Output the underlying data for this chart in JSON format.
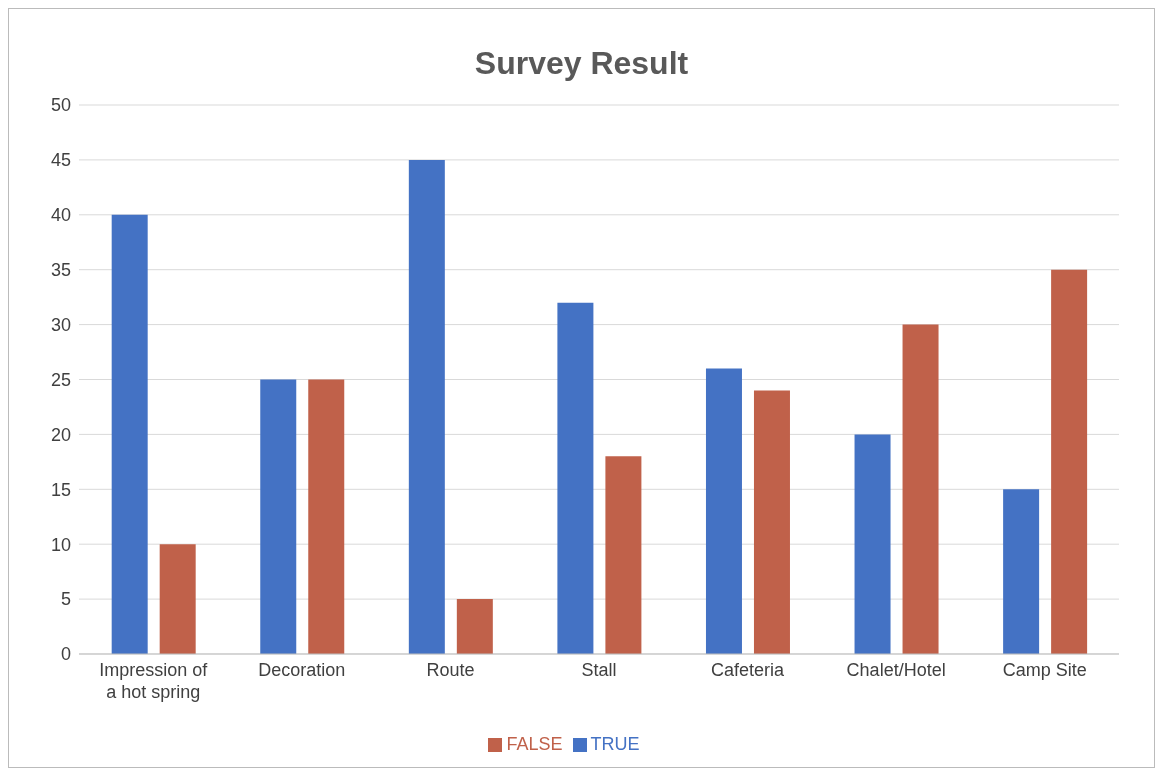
{
  "chart_data": {
    "type": "bar",
    "title": "Survey Result",
    "categories": [
      "Impression of a hot spring",
      "Decoration",
      "Route",
      "Stall",
      "Cafeteria",
      "Chalet/Hotel",
      "Camp Site"
    ],
    "series": [
      {
        "name": "TRUE",
        "color": "#4472c4",
        "values": [
          40,
          25,
          45,
          32,
          26,
          20,
          15
        ]
      },
      {
        "name": "FALSE",
        "color": "#c0614a",
        "values": [
          10,
          25,
          5,
          18,
          24,
          30,
          35
        ]
      }
    ],
    "ylim": [
      0,
      50
    ],
    "yticks": [
      0,
      5,
      10,
      15,
      20,
      25,
      30,
      35,
      40,
      45,
      50
    ],
    "grid": "y",
    "legend": "bottom"
  }
}
